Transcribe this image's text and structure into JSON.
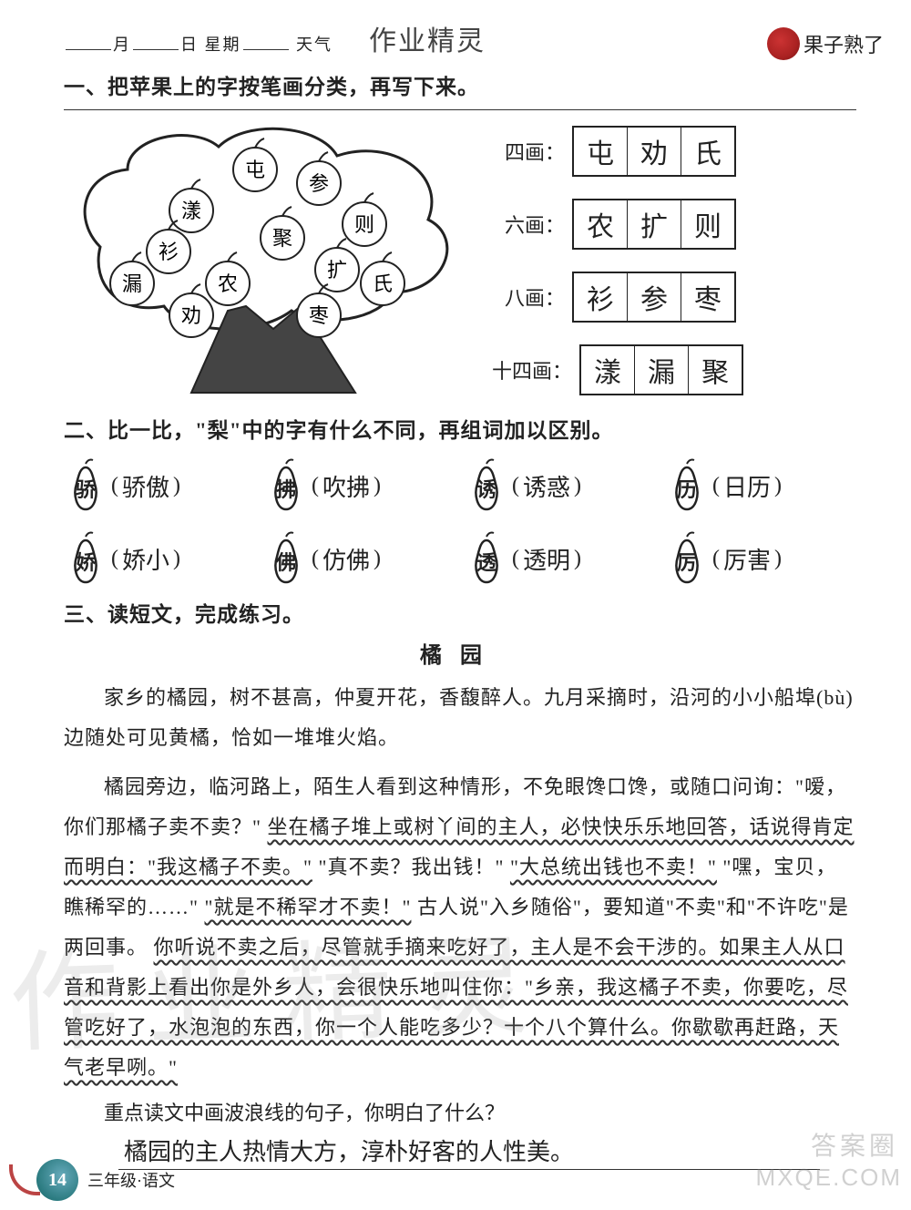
{
  "header": {
    "month_label": "月",
    "day_label": "日",
    "week_label": "星期",
    "weather_label": "天气",
    "title": "作业精灵",
    "corner": "果子熟了"
  },
  "section1": {
    "title": "一、把苹果上的字按笔画分类，再写下来。",
    "apples": [
      "屯",
      "参",
      "漾",
      "则",
      "衫",
      "聚",
      "扩",
      "漏",
      "农",
      "氏",
      "劝",
      "枣"
    ],
    "rows": [
      {
        "label": "四画：",
        "cells": [
          "屯",
          "劝",
          "氏"
        ]
      },
      {
        "label": "六画：",
        "cells": [
          "农",
          "扩",
          "则"
        ]
      },
      {
        "label": "八画：",
        "cells": [
          "衫",
          "参",
          "枣"
        ]
      },
      {
        "label": "十四画：",
        "cells": [
          "漾",
          "漏",
          "聚"
        ]
      }
    ]
  },
  "section2": {
    "title": "二、比一比，\"梨\"中的字有什么不同，再组词加以区别。",
    "pears": [
      {
        "char": "骄",
        "word": "骄傲"
      },
      {
        "char": "拂",
        "word": "吹拂"
      },
      {
        "char": "诱",
        "word": "诱惑"
      },
      {
        "char": "历",
        "word": "日历"
      },
      {
        "char": "娇",
        "word": "娇小"
      },
      {
        "char": "佛",
        "word": "仿佛"
      },
      {
        "char": "透",
        "word": "透明"
      },
      {
        "char": "厉",
        "word": "厉害"
      }
    ]
  },
  "section3": {
    "title": "三、读短文，完成练习。",
    "passage_title": "橘园",
    "p1": "家乡的橘园，树不甚高，仲夏开花，香馥醉人。九月采摘时，沿河的小小船埠(bù)边随处可见黄橘，恰如一堆堆火焰。",
    "p2a": "橘园旁边，临河路上，陌生人看到这种情形，不免眼馋口馋，或随口问询：\"嗳，你们那橘子卖不卖？\"",
    "p2b": "坐在橘子堆上或树丫间的主人，必快快乐乐地回答，话说得肯定而明白：\"我这橘子不卖。\"",
    "p2c": "\"真不卖？我出钱！\"",
    "p2d": "\"大总统出钱也不卖！\"",
    "p2e": "\"嘿，宝贝，瞧稀罕的……\"",
    "p2f": "\"就是不稀罕才不卖！\"",
    "p2g": "古人说\"入乡随俗\"，要知道\"不卖\"和\"不许吃\"是两回事。",
    "p2h": "你听说不卖之后，尽管就手摘来吃好了，主人是不会干涉的。如果主人从口音和背影上看出你是外乡人，会很快乐地叫住你：\"乡亲，我这橘子不卖，你要吃，尽管吃好了，水泡泡的东西，你一个人能吃多少？十个八个算什么。你歇歇再赶路，天气老早咧。\"",
    "question": "重点读文中画波浪线的句子，你明白了什么？",
    "answer": "橘园的主人热情大方，淳朴好客的人性美。"
  },
  "footer": {
    "page": "14",
    "grade": "三年级·语文"
  },
  "watermarks": {
    "big": "作业精灵",
    "brand": "答案圈",
    "site": "MXQE.COM"
  },
  "colors": {
    "text": "#222222",
    "line": "#333333",
    "accent_red": "#b03028",
    "accent_teal": "#1a6e6e"
  }
}
